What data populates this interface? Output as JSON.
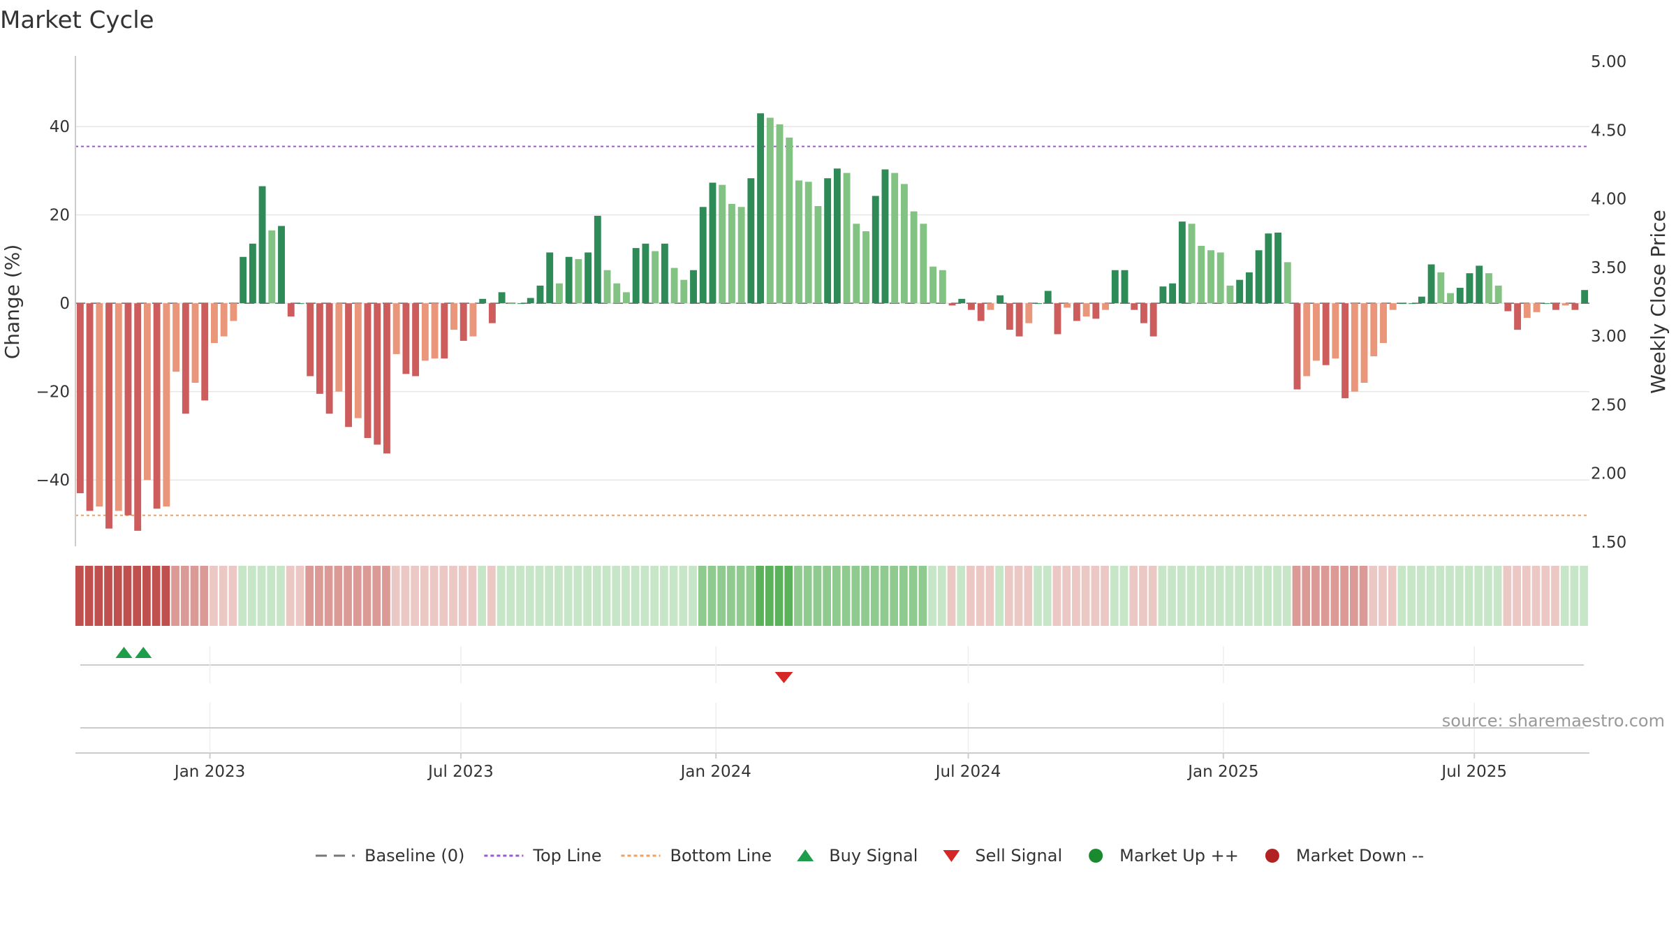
{
  "chart_data": {
    "type": "bar",
    "title": "Market Cycle",
    "ylabel": "Change (%)",
    "y2label": "Weekly Close Price",
    "ylim": [
      -55,
      56
    ],
    "y_ticks": [
      40,
      20,
      0,
      -20,
      -40
    ],
    "y_tick_labels": [
      "40",
      "20",
      "0",
      "−20",
      "−40"
    ],
    "y2_ticks": [
      "5.00",
      "4.50",
      "4.00",
      "3.50",
      "3.00",
      "2.50",
      "2.00",
      "1.50"
    ],
    "x_start": "2022-09-26",
    "x_end": "2025-09-22",
    "x_ticks": [
      {
        "date": "2023-01-01",
        "label": "Jan 2023"
      },
      {
        "date": "2023-07-01",
        "label": "Jul 2023"
      },
      {
        "date": "2024-01-01",
        "label": "Jan 2024"
      },
      {
        "date": "2024-07-01",
        "label": "Jul 2024"
      },
      {
        "date": "2025-01-01",
        "label": "Jan 2025"
      },
      {
        "date": "2025-07-01",
        "label": "Jul 2025"
      }
    ],
    "top_line": 35.5,
    "bottom_line": -48,
    "series": [
      {
        "name": "Change (%)",
        "values": [
          -43,
          -47,
          -46,
          -51,
          -47,
          -48,
          -51.5,
          -40,
          -46.5,
          -46,
          -15.5,
          -25,
          -18,
          -22,
          -9,
          -7.5,
          -4,
          10.5,
          13.5,
          26.5,
          16.5,
          17.5,
          -3,
          0,
          -16.5,
          -20.5,
          -25,
          -20,
          -28,
          -26,
          -30.5,
          -32,
          -34,
          -11.5,
          -16,
          -16.5,
          -13,
          -12.5,
          -12.5,
          -6,
          -8.5,
          -7.5,
          1,
          -4.5,
          2.5,
          0,
          0,
          1.2,
          4,
          11.5,
          4.5,
          10.5,
          10,
          11.5,
          19.8,
          7.5,
          4.5,
          2.5,
          12.5,
          13.5,
          11.8,
          13.5,
          8,
          5.3,
          7.5,
          21.8,
          27.3,
          26.8,
          22.5,
          21.8,
          28.3,
          43,
          42,
          40.5,
          37.5,
          27.8,
          27.5,
          22,
          28.3,
          30.5,
          29.5,
          18,
          16.3,
          24.3,
          30.3,
          29.5,
          27,
          20.8,
          18,
          8.3,
          7.5,
          -0.5,
          1,
          -1.5,
          -4,
          -1.5,
          1.8,
          -6,
          -7.5,
          -4.5,
          0,
          2.8,
          -7,
          -1,
          -4,
          -3,
          -3.5,
          -1.5,
          7.5,
          7.5,
          -1.5,
          -4.5,
          -7.5,
          3.8,
          4.5,
          18.5,
          18,
          13,
          12,
          11.5,
          4,
          5.3,
          7,
          12,
          15.8,
          16,
          9.3,
          -19.5,
          -16.5,
          -13,
          -14,
          -12.5,
          -21.5,
          -20,
          -18,
          -12,
          -9,
          -1.5,
          0,
          0,
          1.5,
          8.8,
          7,
          2.3,
          3.5,
          6.8,
          8.5,
          6.8,
          4,
          -1.8,
          -6,
          -3.3,
          -2,
          0,
          -1.5,
          -0.5,
          -1.5,
          3
        ]
      }
    ],
    "regime_strip": {
      "values": [
        -4,
        -4,
        -4,
        -4,
        -4,
        -4,
        -4,
        -4,
        -4,
        -4,
        -2,
        -2,
        -2,
        -2,
        -1,
        -1,
        -1,
        1,
        1,
        1,
        1,
        1,
        -1,
        -1,
        -2,
        -2,
        -2,
        -2,
        -2,
        -2,
        -2,
        -2,
        -2,
        -1,
        -1,
        -1,
        -1,
        -1,
        -1,
        -1,
        -1,
        -1,
        1,
        -1,
        1,
        1,
        1,
        1,
        1,
        1,
        1,
        1,
        1,
        1,
        1,
        1,
        1,
        1,
        1,
        1,
        1,
        1,
        1,
        1,
        1,
        2,
        2,
        2,
        2,
        2,
        2,
        3,
        3,
        3,
        3,
        2,
        2,
        2,
        2,
        2,
        2,
        2,
        2,
        2,
        2,
        2,
        2,
        2,
        2,
        1,
        1,
        -1,
        1,
        -1,
        -1,
        -1,
        1,
        -1,
        -1,
        -1,
        1,
        1,
        -1,
        -1,
        -1,
        -1,
        -1,
        -1,
        1,
        1,
        -1,
        -1,
        -1,
        1,
        1,
        1,
        1,
        1,
        1,
        1,
        1,
        1,
        1,
        1,
        1,
        1,
        1,
        -2,
        -2,
        -2,
        -2,
        -2,
        -2,
        -2,
        -2,
        -1,
        -1,
        -1,
        1,
        1,
        1,
        1,
        1,
        1,
        1,
        1,
        1,
        1,
        1,
        -1,
        -1,
        -1,
        -1,
        -1,
        -1,
        1,
        1,
        1
      ]
    },
    "buy_signals": [
      "2022-10-31",
      "2022-11-14"
    ],
    "sell_signals": [
      "2024-02-19"
    ],
    "legend_position": "bottom",
    "legend": [
      {
        "label": "Baseline (0)",
        "kind": "dash",
        "color": "#777777"
      },
      {
        "label": "Top Line",
        "kind": "dotted",
        "color": "#9b59d0"
      },
      {
        "label": "Bottom Line",
        "kind": "dotted",
        "color": "#f0a060"
      },
      {
        "label": "Buy Signal",
        "kind": "triangle-up",
        "color": "#1e9e4a"
      },
      {
        "label": "Sell Signal",
        "kind": "triangle-down",
        "color": "#d62728"
      },
      {
        "label": "Market Up ++",
        "kind": "circle",
        "color": "#1a8a2e"
      },
      {
        "label": "Market Down --",
        "kind": "circle",
        "color": "#b22222"
      }
    ],
    "source": "source: sharemaestro.com"
  },
  "colors": {
    "strong_up": "#2e8b57",
    "up": "#82c282",
    "strong_down": "#cd5c5c",
    "down": "#e9967a",
    "top_line": "#9b59d0",
    "bottom_line": "#f0a060",
    "grid": "#e6e6e6",
    "axis": "#cccccc"
  }
}
